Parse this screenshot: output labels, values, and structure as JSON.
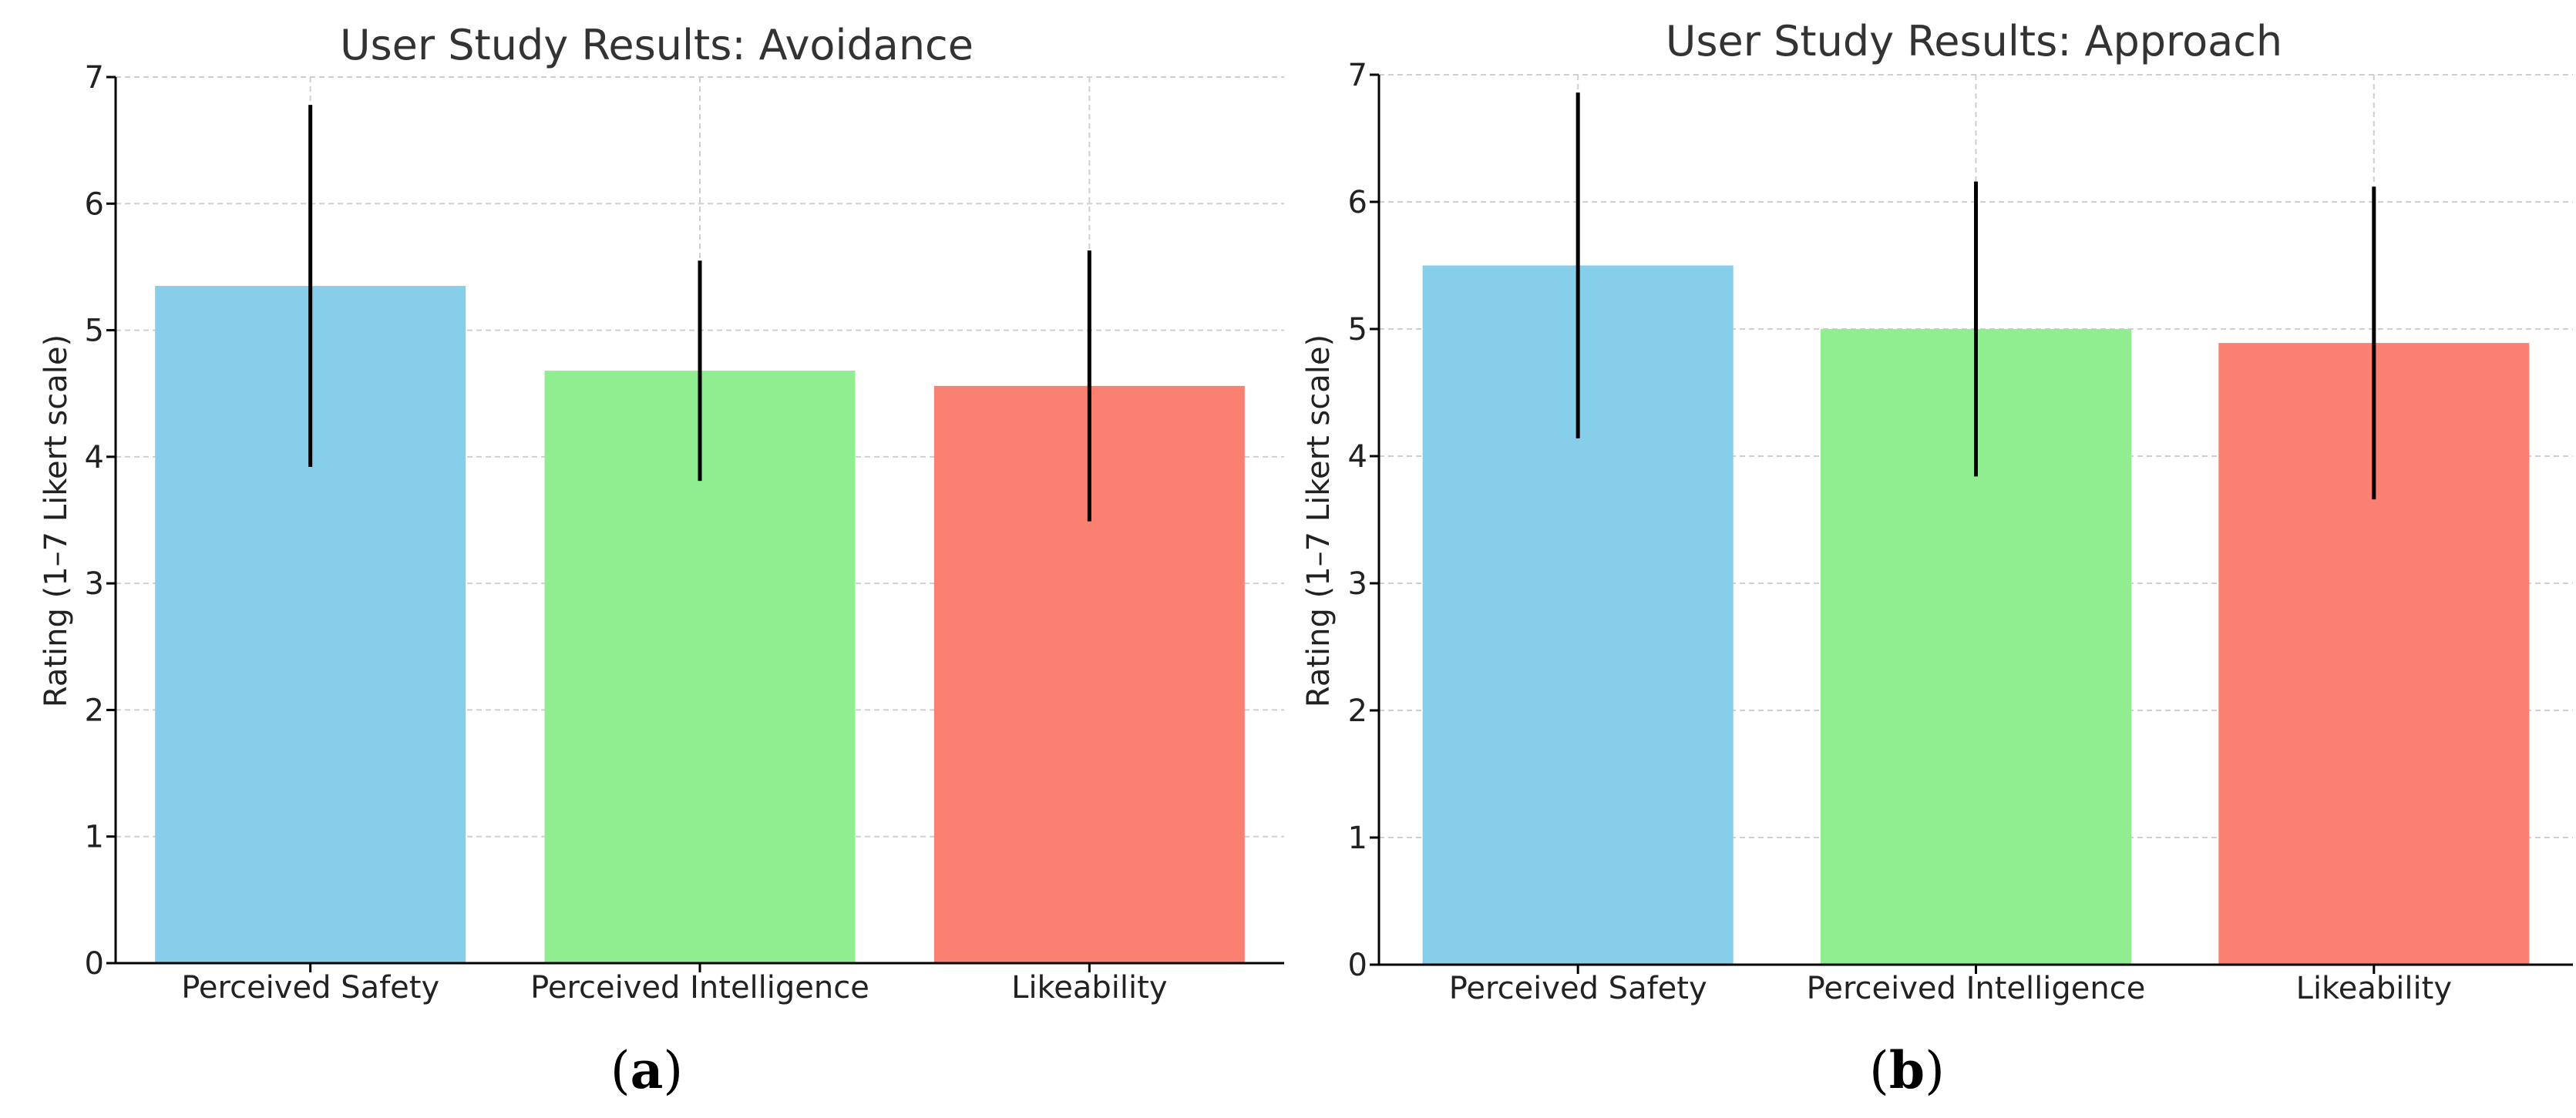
{
  "chart_data": [
    {
      "type": "bar",
      "title": "User Study Results: Avoidance",
      "xlabel": "",
      "ylabel": "Rating (1–7 Likert scale)",
      "ylim": [
        0,
        7
      ],
      "yticks": [
        "0",
        "1",
        "2",
        "3",
        "4",
        "5",
        "6",
        "7"
      ],
      "categories": [
        "Perceived Safety",
        "Perceived Intelligence",
        "Likeability"
      ],
      "values": [
        5.35,
        4.68,
        4.56
      ],
      "errors": [
        1.43,
        0.87,
        1.07
      ],
      "colors": [
        "#87CEEB",
        "#90EE90",
        "#FA8072"
      ],
      "grid": true,
      "subcaption": {
        "open": "(",
        "letter": "a",
        "close": ")"
      }
    },
    {
      "type": "bar",
      "title": "User Study Results: Approach",
      "xlabel": "",
      "ylabel": "Rating (1–7 Likert scale)",
      "ylim": [
        0,
        7
      ],
      "yticks": [
        "0",
        "1",
        "2",
        "3",
        "4",
        "5",
        "6",
        "7"
      ],
      "categories": [
        "Perceived Safety",
        "Perceived Intelligence",
        "Likeability"
      ],
      "values": [
        5.5,
        5.0,
        4.89
      ],
      "errors": [
        1.36,
        1.16,
        1.23
      ],
      "colors": [
        "#87CEEB",
        "#90EE90",
        "#FA8072"
      ],
      "grid": true,
      "subcaption": {
        "open": "(",
        "letter": "b",
        "close": ")"
      }
    }
  ]
}
